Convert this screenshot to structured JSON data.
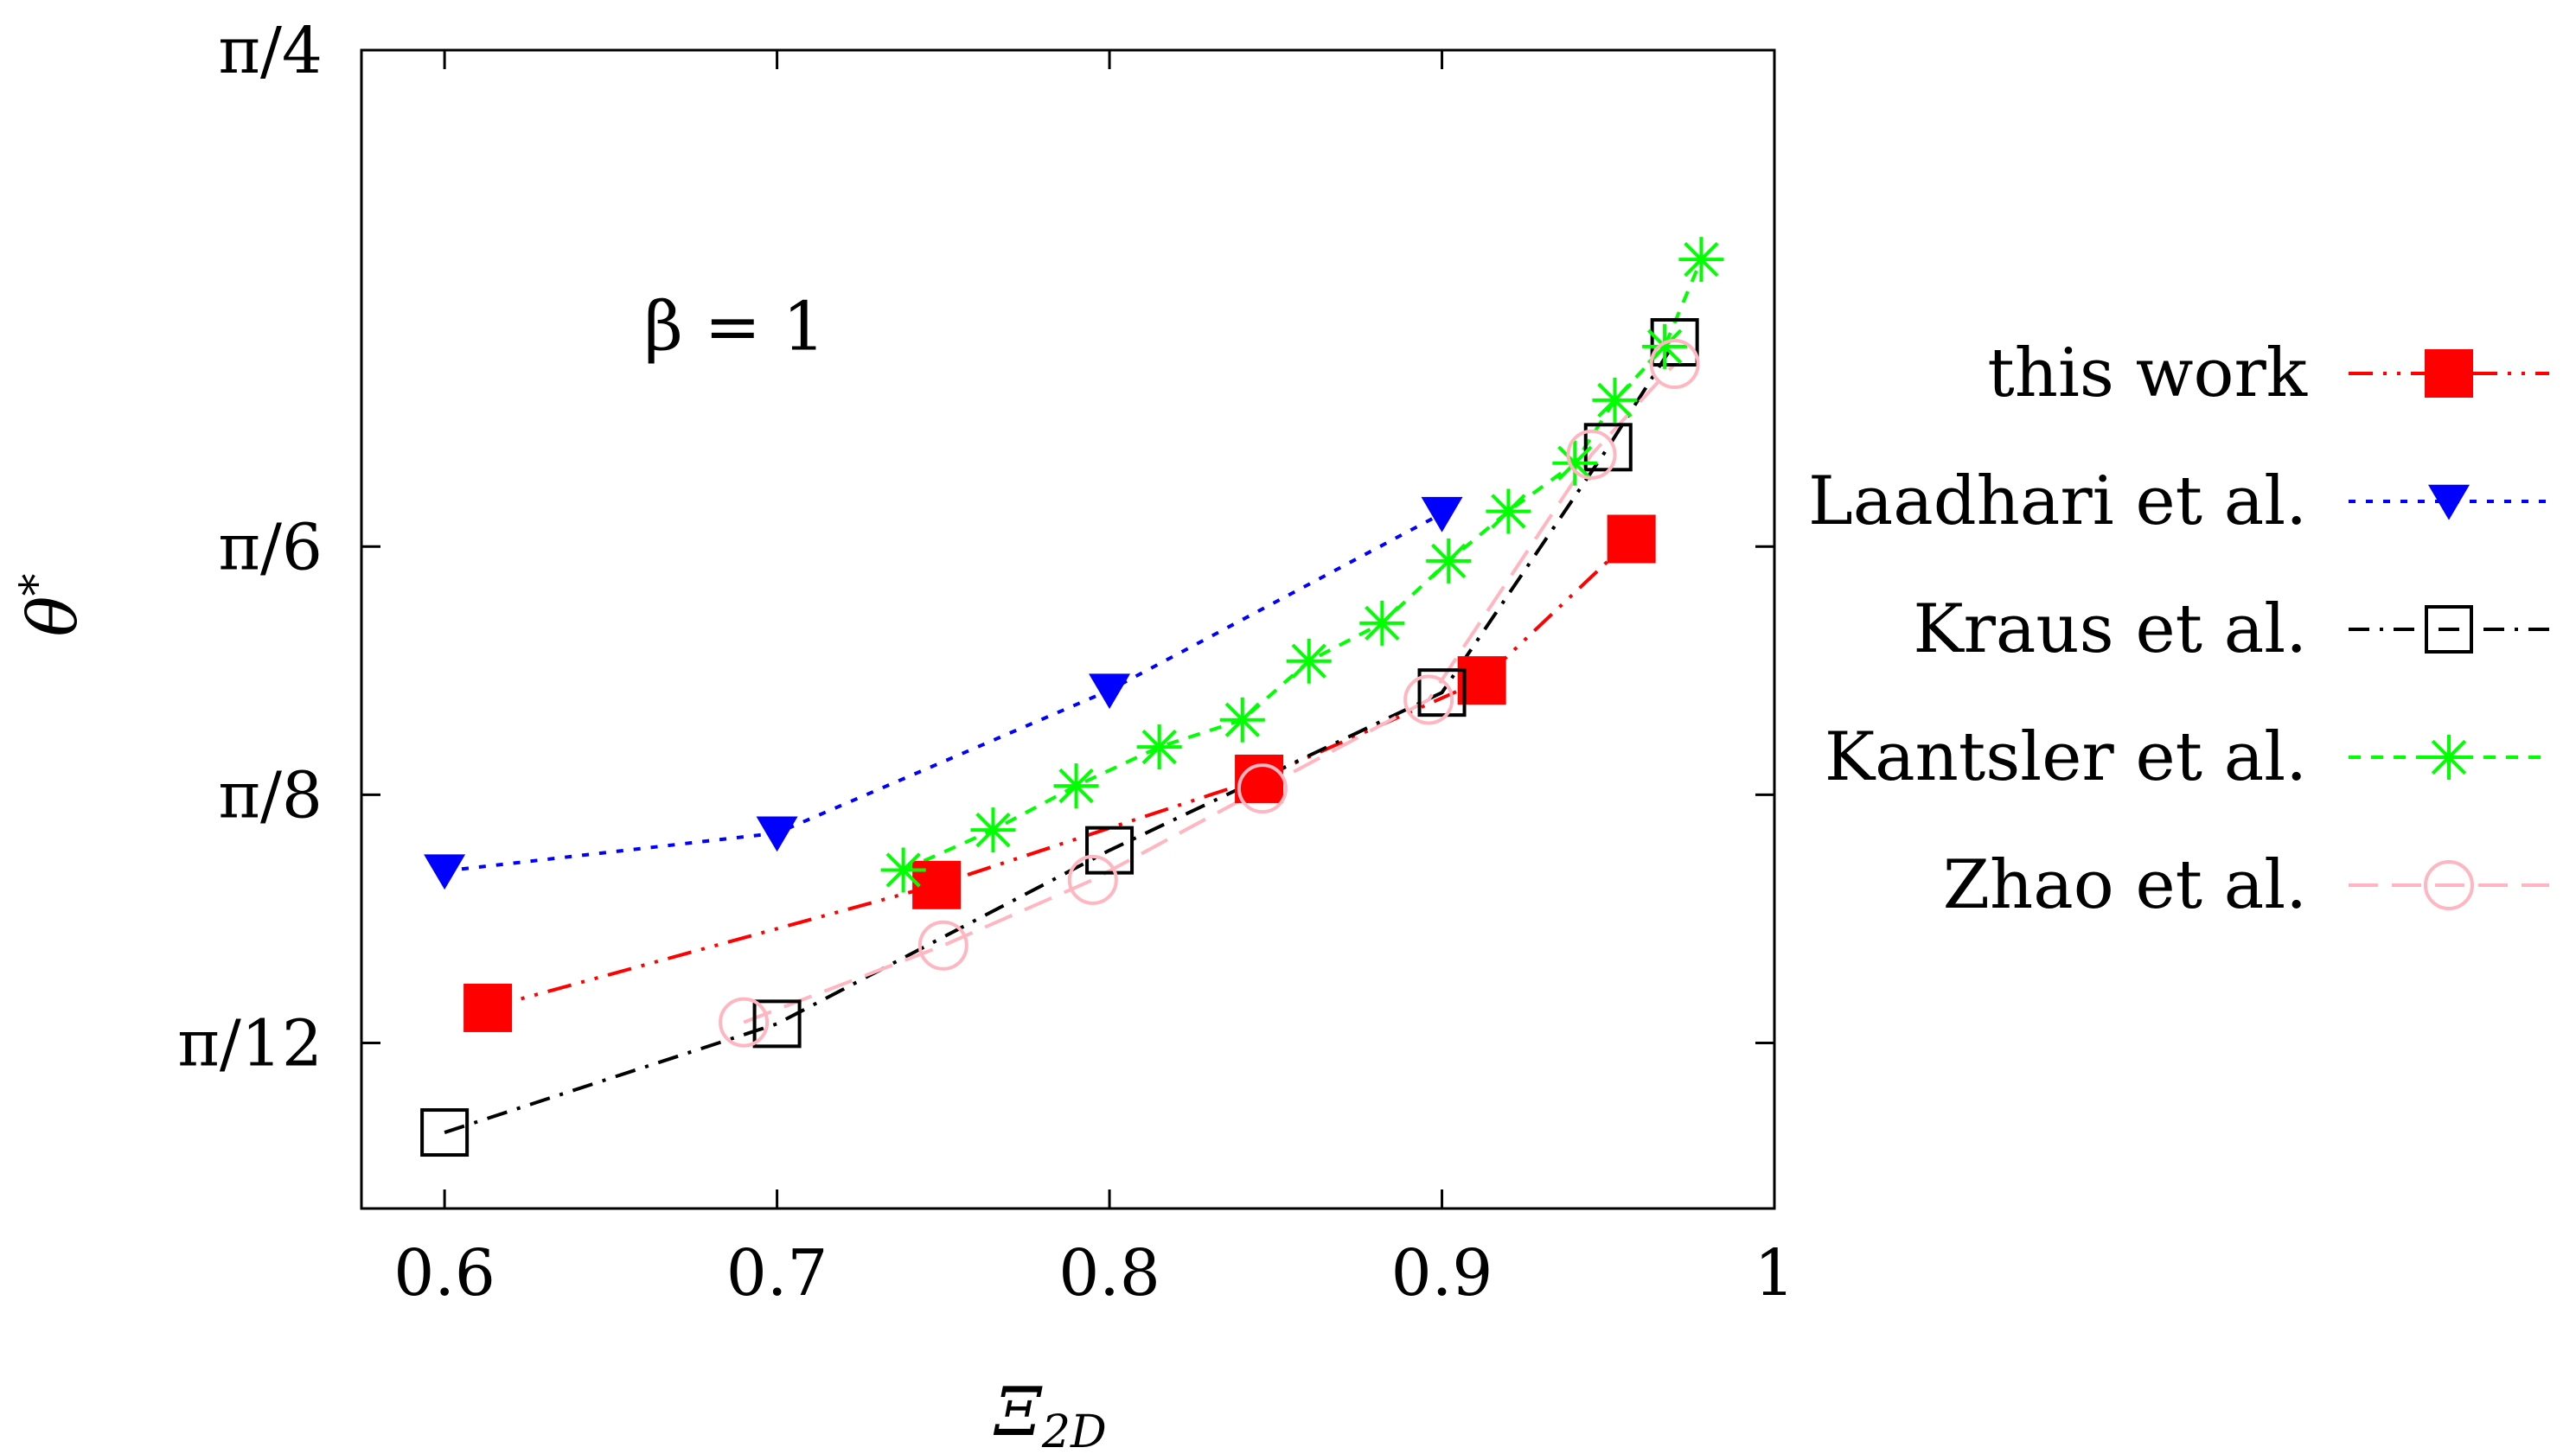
{
  "chart_data": {
    "type": "line",
    "xlabel": "Ξ",
    "xlabel_sub": "2D",
    "ylabel": "θ",
    "ylabel_sup": "*",
    "xlim": [
      0.575,
      1.0
    ],
    "ylim": [
      0.1745,
      0.7854
    ],
    "grid": false,
    "legend_position": "right",
    "x_ticks": [
      {
        "value": 0.6,
        "label": "0.6"
      },
      {
        "value": 0.7,
        "label": "0.7"
      },
      {
        "value": 0.8,
        "label": "0.8"
      },
      {
        "value": 0.9,
        "label": "0.9"
      },
      {
        "value": 1.0,
        "label": "1"
      }
    ],
    "y_ticks": [
      {
        "value": 0.2618,
        "label": "π/12"
      },
      {
        "value": 0.3927,
        "label": "π/8"
      },
      {
        "value": 0.5236,
        "label": "π/6"
      },
      {
        "value": 0.7854,
        "label": "π/4"
      }
    ],
    "annotation": {
      "text": "β = 1",
      "x": 0.66,
      "y": 0.6275
    },
    "series": [
      {
        "name": "this work",
        "color": "#ff0000",
        "marker": "filled-square",
        "dash": "dashdotdot",
        "x": [
          0.613,
          0.748,
          0.845,
          0.912,
          0.957
        ],
        "y": [
          0.2803,
          0.3451,
          0.4011,
          0.453,
          0.5276
        ]
      },
      {
        "name": "Laadhari et al.",
        "color": "#0000ff",
        "marker": "filled-triangle-down",
        "dash": "dotted",
        "x": [
          0.6,
          0.7,
          0.8,
          0.9
        ],
        "y": [
          0.3525,
          0.3725,
          0.4478,
          0.541
        ]
      },
      {
        "name": "Kraus et al.",
        "color": "#000000",
        "marker": "open-square",
        "dash": "dashdot",
        "x": [
          0.6,
          0.7,
          0.8,
          0.9,
          0.95,
          0.97
        ],
        "y": [
          0.2146,
          0.2719,
          0.3634,
          0.4466,
          0.576,
          0.6313
        ]
      },
      {
        "name": "Kantsler et al.",
        "color": "#00ff00",
        "marker": "star",
        "dash": "dashed",
        "x": [
          0.738,
          0.765,
          0.79,
          0.815,
          0.84,
          0.86,
          0.882,
          0.902,
          0.92,
          0.94,
          0.952,
          0.967,
          0.978
        ],
        "y": [
          0.353,
          0.3741,
          0.3974,
          0.4179,
          0.4322,
          0.4632,
          0.4832,
          0.516,
          0.5422,
          0.5676,
          0.6008,
          0.6291,
          0.675
        ]
      },
      {
        "name": "Zhao et al.",
        "color": "#ffb6c1",
        "marker": "open-circle",
        "dash": "longdash",
        "x": [
          0.69,
          0.75,
          0.795,
          0.846,
          0.896,
          0.945,
          0.97
        ],
        "y": [
          0.2727,
          0.3132,
          0.3478,
          0.396,
          0.4428,
          0.5721,
          0.6199
        ]
      }
    ]
  }
}
